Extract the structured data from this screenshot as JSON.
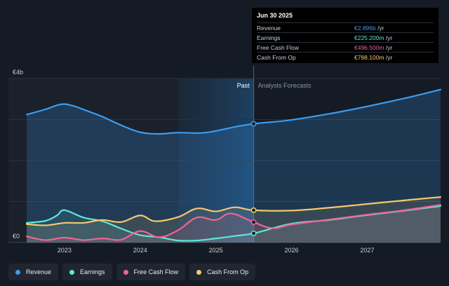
{
  "tooltip": {
    "date": "Jun 30 2025",
    "rows": [
      {
        "label": "Revenue",
        "value": "€2.896b",
        "unit": " /yr",
        "color": "#3b9cf0"
      },
      {
        "label": "Earnings",
        "value": "€225.200m",
        "unit": " /yr",
        "color": "#5ce8d6"
      },
      {
        "label": "Free Cash Flow",
        "value": "€496.500m",
        "unit": " /yr",
        "color": "#f0639a"
      },
      {
        "label": "Cash From Op",
        "value": "€788.100m",
        "unit": " /yr",
        "color": "#f5c86e"
      }
    ]
  },
  "legend": [
    {
      "label": "Revenue",
      "color": "#3b9cf0"
    },
    {
      "label": "Earnings",
      "color": "#5ce8d6"
    },
    {
      "label": "Free Cash Flow",
      "color": "#f0639a"
    },
    {
      "label": "Cash From Op",
      "color": "#f5c86e"
    }
  ],
  "chart_data": {
    "type": "area",
    "y_top_label": "€4b",
    "y_bottom_label": "€0",
    "ylim": [
      0,
      4
    ],
    "y_unit": "€b",
    "xlim": [
      2022.5,
      2027.97
    ],
    "x_ticks": [
      2023,
      2024,
      2025,
      2026,
      2027
    ],
    "past_label": "Past",
    "forecast_label": "Analysts Forecasts",
    "divider_x": 2025.5,
    "past_shade_start": 2024.5,
    "grid": true,
    "series": [
      {
        "name": "Revenue",
        "color": "#3b9cf0",
        "x": [
          2022.5,
          2022.75,
          2022.95,
          2023.1,
          2023.3,
          2023.5,
          2023.75,
          2024.0,
          2024.25,
          2024.5,
          2024.8,
          2025.0,
          2025.25,
          2025.5,
          2025.75,
          2026.0,
          2026.5,
          2027.0,
          2027.5,
          2027.97
        ],
        "y": [
          3.12,
          3.25,
          3.37,
          3.34,
          3.21,
          3.07,
          2.86,
          2.69,
          2.65,
          2.68,
          2.67,
          2.72,
          2.82,
          2.896,
          2.94,
          2.99,
          3.14,
          3.32,
          3.52,
          3.73
        ]
      },
      {
        "name": "Earnings",
        "color": "#5ce8d6",
        "x": [
          2022.5,
          2022.75,
          2022.9,
          2023.0,
          2023.25,
          2023.5,
          2023.75,
          2024.0,
          2024.25,
          2024.5,
          2024.75,
          2025.0,
          2025.25,
          2025.5,
          2026.0,
          2026.5,
          2027.0,
          2027.5,
          2027.97
        ],
        "y": [
          0.48,
          0.53,
          0.66,
          0.79,
          0.61,
          0.52,
          0.34,
          0.18,
          0.13,
          0.05,
          0.05,
          0.1,
          0.16,
          0.2252,
          0.46,
          0.55,
          0.67,
          0.78,
          0.89
        ]
      },
      {
        "name": "Free Cash Flow",
        "color": "#f0639a",
        "x": [
          2022.5,
          2022.75,
          2023.0,
          2023.25,
          2023.5,
          2023.75,
          2024.0,
          2024.25,
          2024.5,
          2024.75,
          2025.0,
          2025.2,
          2025.5,
          2025.75,
          2026.0,
          2026.5,
          2027.0,
          2027.5,
          2027.97
        ],
        "y": [
          0.15,
          0.06,
          0.12,
          0.06,
          0.1,
          0.07,
          0.28,
          0.13,
          0.3,
          0.61,
          0.55,
          0.71,
          0.4965,
          0.35,
          0.44,
          0.56,
          0.68,
          0.79,
          0.92
        ]
      },
      {
        "name": "Cash From Op",
        "color": "#f5c86e",
        "x": [
          2022.5,
          2022.75,
          2023.0,
          2023.25,
          2023.5,
          2023.75,
          2024.0,
          2024.2,
          2024.5,
          2024.75,
          2025.0,
          2025.25,
          2025.5,
          2026.0,
          2026.5,
          2027.0,
          2027.5,
          2027.97
        ],
        "y": [
          0.45,
          0.42,
          0.48,
          0.48,
          0.55,
          0.5,
          0.66,
          0.52,
          0.62,
          0.83,
          0.76,
          0.86,
          0.7881,
          0.78,
          0.85,
          0.94,
          1.03,
          1.11
        ]
      }
    ]
  }
}
